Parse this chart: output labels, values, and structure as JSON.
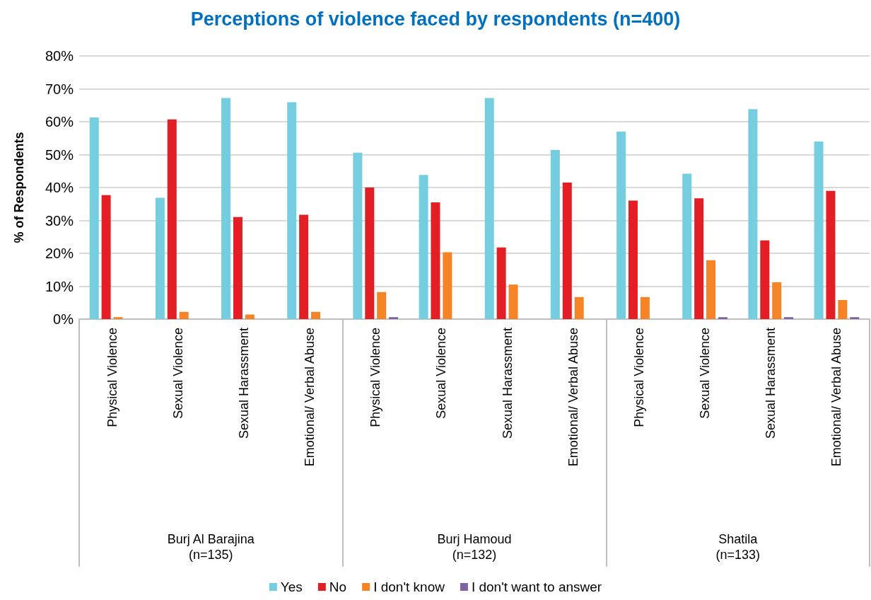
{
  "chart_data": {
    "type": "bar",
    "title": "Perceptions of violence faced by respondents (n=400)",
    "ylabel": "% of Respondents",
    "categories": [
      "Physical Violence",
      "Sexual Violence",
      "Sexual Harassment",
      "Emotional/ Verbal Abuse",
      "Physical Violence",
      "Sexual Violence",
      "Sexual Harassment",
      "Emotional/ Verbal Abuse",
      "Physical Violence",
      "Sexual Violence",
      "Sexual Harassment",
      "Emotional/ Verbal Abuse"
    ],
    "annotations": [
      "Burj Al Barajina\n(n=135)",
      "Burj Hamoud\n(n=132)",
      "Shatila\n(n=133)"
    ],
    "series": [
      {
        "name": "Yes",
        "color": "#75cee0",
        "values": [
          61.3,
          36.9,
          67.2,
          65.9,
          50.6,
          43.8,
          67.2,
          51.4,
          57.0,
          44.2,
          63.8,
          54.0
        ]
      },
      {
        "name": "No",
        "color": "#e31f26",
        "values": [
          37.7,
          60.7,
          31.0,
          31.7,
          40.0,
          35.5,
          21.8,
          41.5,
          36.0,
          36.7,
          23.9,
          39.0
        ]
      },
      {
        "name": "I don't know",
        "color": "#f58426",
        "values": [
          0.6,
          2.2,
          1.4,
          2.2,
          8.2,
          20.3,
          10.5,
          6.7,
          6.7,
          17.9,
          11.2,
          5.8
        ]
      },
      {
        "name": "I don't want to answer",
        "color": "#8064a2",
        "values": [
          0,
          0,
          0,
          0,
          0.6,
          0,
          0,
          0,
          0,
          0.6,
          0.6,
          0.6
        ]
      }
    ],
    "ylim": [
      0,
      80
    ],
    "yticks": [
      {
        "value": 0,
        "label": "0%"
      },
      {
        "value": 10,
        "label": "10%"
      },
      {
        "value": 20,
        "label": "20%"
      },
      {
        "value": 30,
        "label": "30%"
      },
      {
        "value": 40,
        "label": "40%"
      },
      {
        "value": 50,
        "label": "50%"
      },
      {
        "value": 60,
        "label": "60%"
      },
      {
        "value": 70,
        "label": "70%"
      },
      {
        "value": 80,
        "label": "80%"
      }
    ],
    "grid": "y",
    "legend": "bottom"
  }
}
